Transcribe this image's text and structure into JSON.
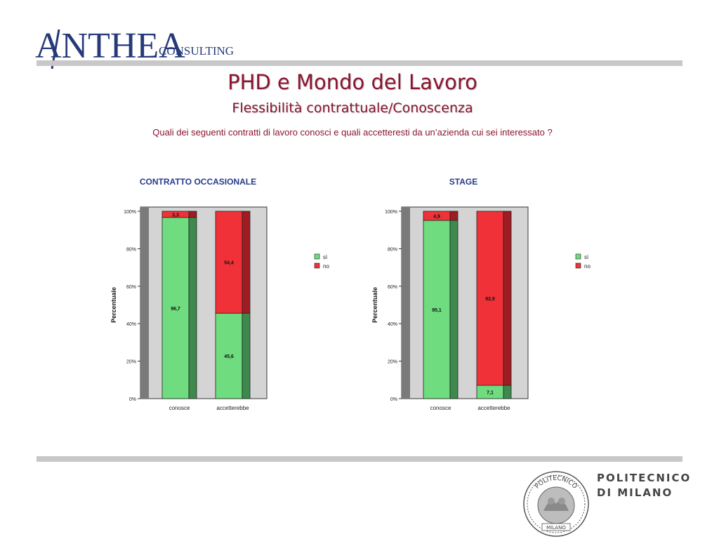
{
  "header": {
    "logo_brand": "ANTHEA",
    "logo_suffix": "CONSULTING",
    "title": "PHD e Mondo del Lavoro",
    "subtitle": "Flessibilità contrattuale/Conoscenza",
    "question": "Quali dei seguenti contratti di lavoro conosci e quali accetteresti da un’azienda cui sei interessato ?"
  },
  "footer": {
    "university_line1": "POLITECNICO",
    "university_line2": "DI MILANO",
    "seal_text_top": "POLITECNICO",
    "seal_text_bottom": "MILANO"
  },
  "colors": {
    "accent": "#8b1430",
    "chart_title": "#263a8c",
    "si_fill": "#70dc80",
    "si_side": "#3e8a4e",
    "no_fill": "#f03238",
    "no_side": "#9e1c22",
    "plot_bg": "#d4d4d4",
    "wall": "#7a7a7a"
  },
  "chart_data": [
    {
      "type": "bar",
      "stacked": true,
      "title": "CONTRATTO OCCASIONALE",
      "categories": [
        "conosce",
        "accetterebbe"
      ],
      "series": [
        {
          "name": "sì",
          "values": [
            96.7,
            45.6
          ],
          "labels": [
            "96,7",
            "45,6"
          ]
        },
        {
          "name": "no",
          "values": [
            3.3,
            54.4
          ],
          "labels": [
            "3,3",
            "54,4"
          ]
        }
      ],
      "ylabel": "Percentuale",
      "ylim": [
        0,
        100
      ],
      "yticks": [
        "0%",
        "20%",
        "40%",
        "60%",
        "80%",
        "100%"
      ],
      "legend": "right"
    },
    {
      "type": "bar",
      "stacked": true,
      "title": "STAGE",
      "categories": [
        "conosce",
        "accetterebbe"
      ],
      "series": [
        {
          "name": "sì",
          "values": [
            95.1,
            7.1
          ],
          "labels": [
            "95,1",
            "7,1"
          ]
        },
        {
          "name": "no",
          "values": [
            4.9,
            92.9
          ],
          "labels": [
            "4,9",
            "92,9"
          ]
        }
      ],
      "ylabel": "Percentuale",
      "ylim": [
        0,
        100
      ],
      "yticks": [
        "0%",
        "20%",
        "40%",
        "60%",
        "80%",
        "100%"
      ],
      "legend": "right"
    }
  ]
}
